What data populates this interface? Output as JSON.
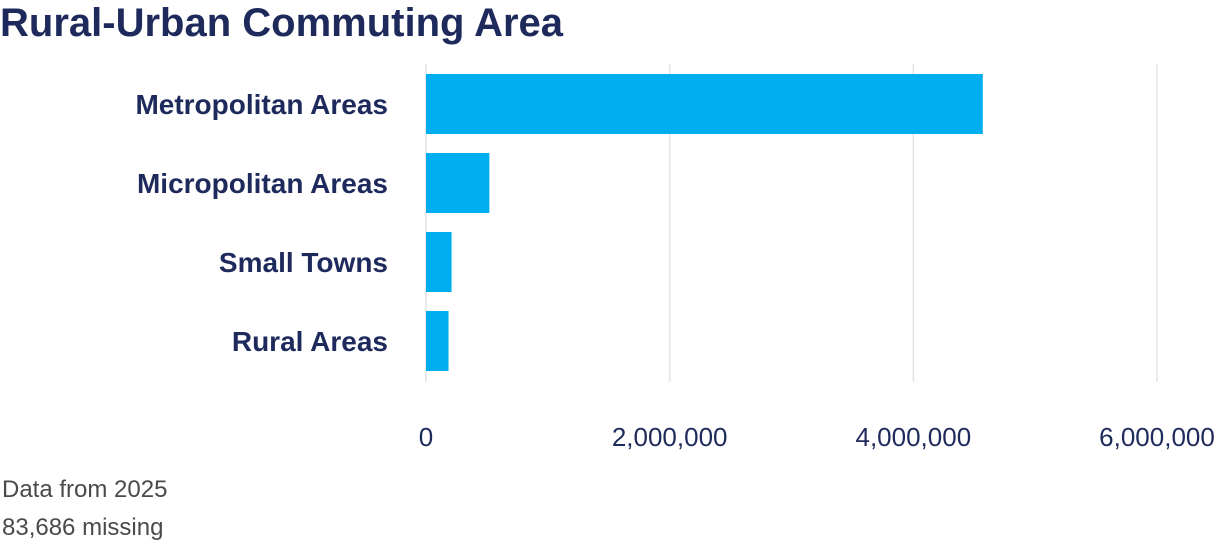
{
  "chart_data": {
    "type": "bar",
    "orientation": "horizontal",
    "title": "Rural-Urban Commuting Area",
    "categories": [
      "Metropolitan Areas",
      "Micropolitan Areas",
      "Small Towns",
      "Rural Areas"
    ],
    "values": [
      4570000,
      520000,
      210000,
      185000
    ],
    "xlim": [
      0,
      6000000
    ],
    "xticks": [
      0,
      2000000,
      4000000,
      6000000
    ],
    "xtick_labels": [
      "0",
      "2,000,000",
      "4,000,000",
      "6,000,000"
    ],
    "grid": "vertical",
    "bar_color": "#00aeef"
  },
  "footnotes": {
    "year": "Data from 2025",
    "missing": "83,686 missing"
  }
}
